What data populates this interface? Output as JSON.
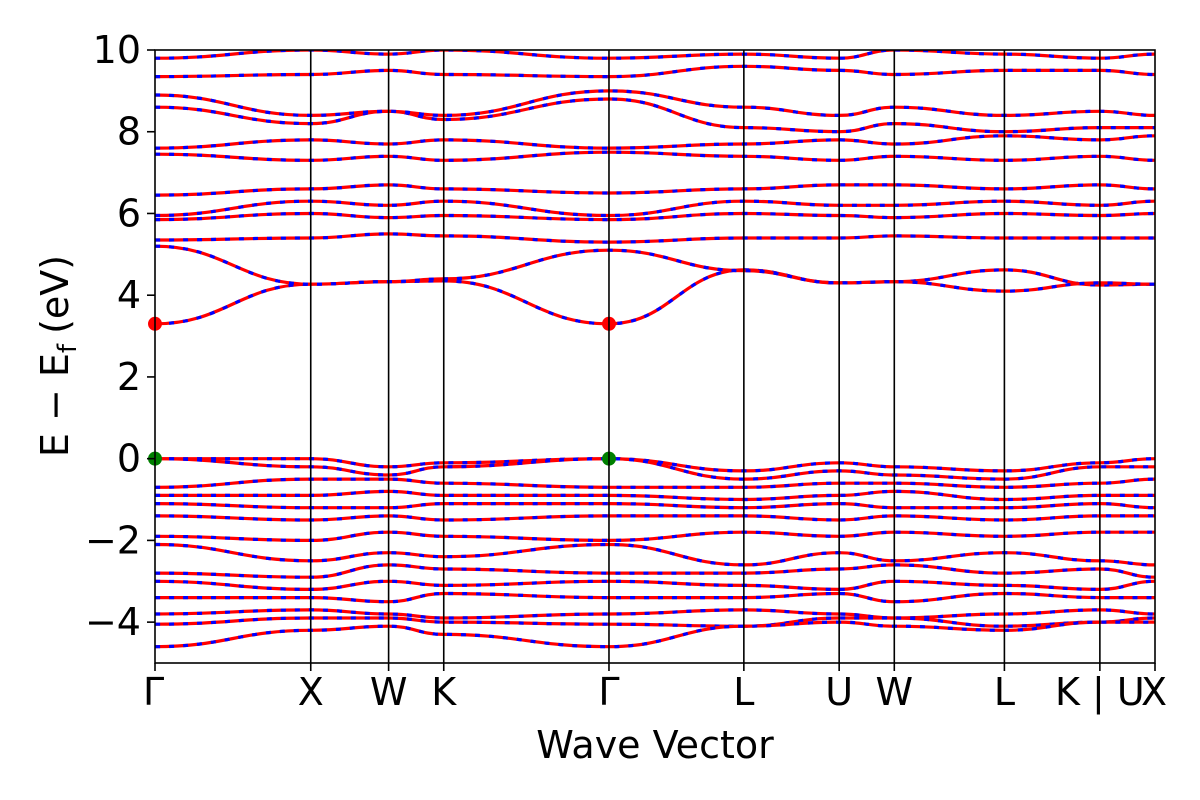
{
  "chart_data": {
    "type": "line",
    "title": "",
    "xlabel": "Wave Vector",
    "ylabel": "E − E",
    "ylabel_subscript": "f",
    "ylabel_unit": "(eV)",
    "ylim": [
      -5,
      10
    ],
    "yticks": [
      -4,
      -2,
      0,
      2,
      4,
      6,
      8,
      10
    ],
    "ytick_labels": [
      "−4",
      "−2",
      "0",
      "2",
      "4",
      "6",
      "8",
      "10"
    ],
    "kpath": [
      {
        "label": "Γ",
        "k": 0.0
      },
      {
        "label": "X",
        "k": 1.0
      },
      {
        "label": "W",
        "k": 1.5
      },
      {
        "label": "K",
        "k": 1.854
      },
      {
        "label": "Γ",
        "k": 2.915
      },
      {
        "label": "L",
        "k": 3.781
      },
      {
        "label": "U",
        "k": 4.393
      },
      {
        "label": "W",
        "k": 4.747
      },
      {
        "label": "L",
        "k": 5.454
      },
      {
        "label": "K | U",
        "k": 6.067
      },
      {
        "label": "X",
        "k": 6.421
      }
    ],
    "colors": {
      "spin_up": "#ff0000",
      "spin_down": "#0000ff",
      "vbm": "#008000",
      "cbm": "#ff0000"
    },
    "markers": [
      {
        "name": "cbm",
        "k": 0.0,
        "e": 3.3
      },
      {
        "name": "cbm",
        "k": 2.915,
        "e": 3.3
      },
      {
        "name": "vbm",
        "k": 0.0,
        "e": 0.0
      },
      {
        "name": "vbm",
        "k": 2.915,
        "e": 0.0
      }
    ],
    "bands": [
      {
        "e": [
          3.3,
          4.27,
          4.33,
          4.35,
          3.3,
          4.62,
          4.3,
          4.33,
          4.62,
          4.25,
          4.27
        ]
      },
      {
        "e": [
          5.2,
          4.27,
          4.33,
          4.4,
          5.1,
          4.6,
          4.3,
          4.33,
          4.1,
          4.3,
          4.27
        ]
      },
      {
        "e": [
          5.35,
          5.4,
          5.5,
          5.45,
          5.3,
          5.4,
          5.4,
          5.45,
          5.4,
          5.4,
          5.4
        ]
      },
      {
        "e": [
          5.85,
          6.0,
          5.9,
          5.95,
          5.85,
          6.0,
          5.95,
          5.9,
          6.0,
          5.95,
          6.0
        ]
      },
      {
        "e": [
          5.95,
          6.3,
          6.2,
          6.3,
          5.95,
          6.3,
          6.2,
          6.2,
          6.3,
          6.2,
          6.3
        ]
      },
      {
        "e": [
          6.45,
          6.6,
          6.7,
          6.6,
          6.5,
          6.6,
          6.7,
          6.7,
          6.6,
          6.7,
          6.6
        ]
      },
      {
        "e": [
          7.45,
          7.3,
          7.4,
          7.3,
          7.5,
          7.4,
          7.3,
          7.4,
          7.3,
          7.4,
          7.3
        ]
      },
      {
        "e": [
          7.6,
          7.8,
          7.7,
          7.8,
          7.6,
          7.7,
          7.8,
          7.7,
          7.9,
          7.8,
          7.9
        ]
      },
      {
        "e": [
          8.6,
          8.2,
          8.5,
          8.3,
          8.8,
          8.1,
          8.0,
          8.2,
          8.0,
          8.1,
          8.1
        ]
      },
      {
        "e": [
          8.9,
          8.4,
          8.5,
          8.4,
          9.0,
          8.6,
          8.4,
          8.6,
          8.4,
          8.5,
          8.4
        ]
      },
      {
        "e": [
          9.35,
          9.4,
          9.5,
          9.4,
          9.35,
          9.6,
          9.5,
          9.4,
          9.5,
          9.5,
          9.4
        ]
      },
      {
        "e": [
          9.8,
          10.0,
          9.9,
          10.0,
          9.8,
          9.9,
          9.8,
          10.0,
          9.9,
          9.8,
          9.9
        ]
      },
      {
        "e": [
          0.0,
          0.0,
          -0.2,
          -0.1,
          0.0,
          -0.3,
          -0.1,
          -0.2,
          -0.3,
          -0.1,
          0.0
        ]
      },
      {
        "e": [
          0.0,
          -0.2,
          -0.4,
          -0.2,
          0.0,
          -0.5,
          -0.3,
          -0.4,
          -0.5,
          -0.2,
          -0.2
        ]
      },
      {
        "e": [
          -0.7,
          -0.5,
          -0.5,
          -0.6,
          -0.7,
          -0.7,
          -0.6,
          -0.6,
          -0.7,
          -0.6,
          -0.5
        ]
      },
      {
        "e": [
          -0.9,
          -0.9,
          -0.8,
          -0.9,
          -0.9,
          -1.0,
          -0.9,
          -0.8,
          -1.0,
          -0.9,
          -0.9
        ]
      },
      {
        "e": [
          -1.1,
          -1.2,
          -1.2,
          -1.1,
          -1.1,
          -1.2,
          -1.1,
          -1.2,
          -1.2,
          -1.1,
          -1.2
        ]
      },
      {
        "e": [
          -1.4,
          -1.5,
          -1.4,
          -1.5,
          -1.4,
          -1.4,
          -1.5,
          -1.4,
          -1.5,
          -1.4,
          -1.4
        ]
      },
      {
        "e": [
          -1.9,
          -2.0,
          -1.8,
          -1.9,
          -2.0,
          -1.8,
          -1.9,
          -1.8,
          -1.9,
          -1.8,
          -1.8
        ]
      },
      {
        "e": [
          -2.1,
          -2.5,
          -2.3,
          -2.4,
          -2.1,
          -2.6,
          -2.3,
          -2.5,
          -2.3,
          -2.5,
          -2.6
        ]
      },
      {
        "e": [
          -2.8,
          -2.9,
          -2.6,
          -2.7,
          -2.8,
          -2.8,
          -2.7,
          -2.6,
          -2.8,
          -2.7,
          -2.9
        ]
      },
      {
        "e": [
          -3.0,
          -3.2,
          -3.0,
          -3.1,
          -3.0,
          -3.1,
          -3.2,
          -3.0,
          -3.1,
          -3.2,
          -3.0
        ]
      },
      {
        "e": [
          -3.4,
          -3.4,
          -3.5,
          -3.3,
          -3.4,
          -3.4,
          -3.3,
          -3.5,
          -3.3,
          -3.4,
          -3.4
        ]
      },
      {
        "e": [
          -3.8,
          -3.7,
          -3.8,
          -3.9,
          -3.8,
          -3.7,
          -3.8,
          -3.9,
          -3.8,
          -3.7,
          -3.8
        ]
      },
      {
        "e": [
          -4.05,
          -3.9,
          -3.9,
          -4.0,
          -4.05,
          -4.1,
          -3.9,
          -3.9,
          -4.1,
          -4.0,
          -3.9
        ]
      },
      {
        "e": [
          -4.6,
          -4.2,
          -4.1,
          -4.3,
          -4.6,
          -4.1,
          -4.0,
          -4.1,
          -4.2,
          -4.0,
          -4.0
        ]
      }
    ]
  }
}
